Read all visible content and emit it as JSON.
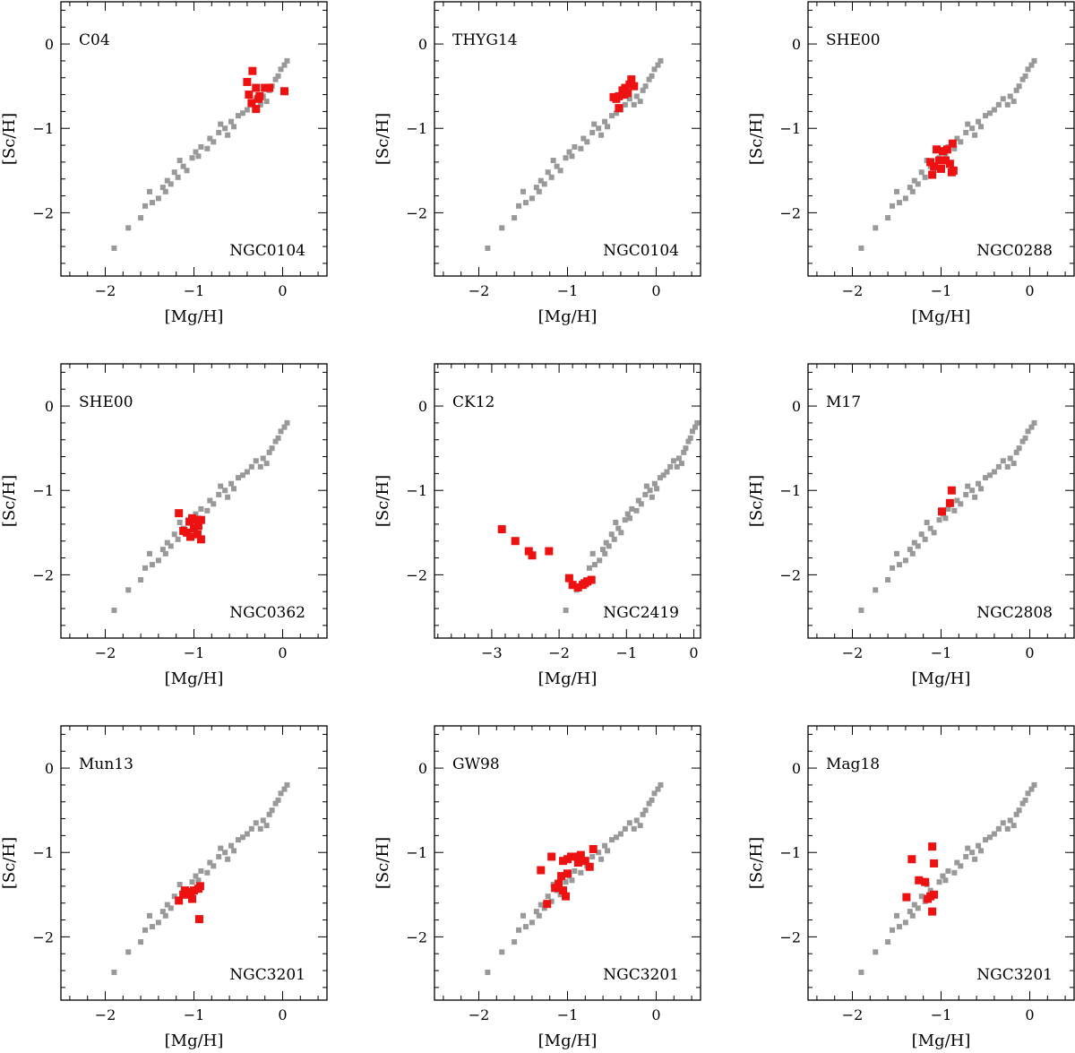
{
  "colors": {
    "reference": "#999999",
    "highlight": "#ee1111",
    "axis": "#000000"
  },
  "chart_data": [
    {
      "type": "scatter",
      "source_label": "C04",
      "cluster_label": "NGC0104",
      "xlabel": "[Mg/H]",
      "ylabel": "[Sc/H]",
      "xlim": [
        -2.5,
        0.5
      ],
      "ylim": [
        -2.75,
        0.5
      ],
      "xticks": [
        -2,
        -1,
        0
      ],
      "yticks": [
        -2,
        -1,
        0
      ],
      "x_tick_labels": [
        "−2",
        "−1",
        "0"
      ],
      "y_tick_labels": [
        "−2",
        "−1",
        "0"
      ],
      "series": [
        {
          "name": "NGC0104",
          "points": [
            [
              -0.38,
              -0.6
            ],
            [
              -0.34,
              -0.32
            ],
            [
              -0.3,
              -0.52
            ],
            [
              -0.35,
              -0.7
            ],
            [
              -0.27,
              -0.65
            ],
            [
              -0.3,
              -0.77
            ],
            [
              -0.2,
              -0.52
            ],
            [
              -0.15,
              -0.52
            ],
            [
              -0.26,
              -0.62
            ],
            [
              -0.4,
              -0.45
            ],
            [
              0.02,
              -0.56
            ]
          ]
        }
      ]
    },
    {
      "type": "scatter",
      "source_label": "THYG14",
      "cluster_label": "NGC0104",
      "xlabel": "[Mg/H]",
      "ylabel": "[Sc/H]",
      "xlim": [
        -2.5,
        0.5
      ],
      "ylim": [
        -2.75,
        0.5
      ],
      "xticks": [
        -2,
        -1,
        0
      ],
      "yticks": [
        -2,
        -1,
        0
      ],
      "x_tick_labels": [
        "−2",
        "−1",
        "0"
      ],
      "y_tick_labels": [
        "−2",
        "−1",
        "0"
      ],
      "series": [
        {
          "name": "NGC0104",
          "points": [
            [
              -0.48,
              -0.63
            ],
            [
              -0.42,
              -0.62
            ],
            [
              -0.38,
              -0.55
            ],
            [
              -0.35,
              -0.52
            ],
            [
              -0.3,
              -0.48
            ],
            [
              -0.28,
              -0.42
            ],
            [
              -0.36,
              -0.6
            ],
            [
              -0.42,
              -0.76
            ],
            [
              -0.32,
              -0.58
            ],
            [
              -0.25,
              -0.5
            ],
            [
              -0.45,
              -0.65
            ]
          ]
        }
      ]
    },
    {
      "type": "scatter",
      "source_label": "SHE00",
      "cluster_label": "NGC0288",
      "xlabel": "[Mg/H]",
      "ylabel": "[Sc/H]",
      "xlim": [
        -2.5,
        0.5
      ],
      "ylim": [
        -2.75,
        0.5
      ],
      "xticks": [
        -2,
        -1,
        0
      ],
      "yticks": [
        -2,
        -1,
        0
      ],
      "x_tick_labels": [
        "−2",
        "−1",
        "0"
      ],
      "y_tick_labels": [
        "−2",
        "−1",
        "0"
      ],
      "series": [
        {
          "name": "NGC0288",
          "points": [
            [
              -1.1,
              -1.55
            ],
            [
              -1.08,
              -1.45
            ],
            [
              -1.02,
              -1.38
            ],
            [
              -1.05,
              -1.25
            ],
            [
              -0.98,
              -1.27
            ],
            [
              -0.93,
              -1.25
            ],
            [
              -0.87,
              -1.18
            ],
            [
              -0.95,
              -1.38
            ],
            [
              -0.9,
              -1.42
            ],
            [
              -0.86,
              -1.5
            ],
            [
              -1.0,
              -1.48
            ],
            [
              -1.12,
              -1.4
            ],
            [
              -0.88,
              -1.52
            ]
          ]
        }
      ]
    },
    {
      "type": "scatter",
      "source_label": "SHE00",
      "cluster_label": "NGC0362",
      "xlabel": "[Mg/H]",
      "ylabel": "[Sc/H]",
      "xlim": [
        -2.5,
        0.5
      ],
      "ylim": [
        -2.75,
        0.5
      ],
      "xticks": [
        -2,
        -1,
        0
      ],
      "yticks": [
        -2,
        -1,
        0
      ],
      "x_tick_labels": [
        "−2",
        "−1",
        "0"
      ],
      "y_tick_labels": [
        "−2",
        "−1",
        "0"
      ],
      "series": [
        {
          "name": "NGC0362",
          "points": [
            [
              -1.17,
              -1.27
            ],
            [
              -1.12,
              -1.48
            ],
            [
              -1.05,
              -1.37
            ],
            [
              -1.02,
              -1.33
            ],
            [
              -0.97,
              -1.35
            ],
            [
              -0.92,
              -1.35
            ],
            [
              -1.0,
              -1.45
            ],
            [
              -0.96,
              -1.52
            ],
            [
              -1.04,
              -1.55
            ],
            [
              -0.92,
              -1.58
            ],
            [
              -0.95,
              -1.42
            ],
            [
              -1.08,
              -1.5
            ]
          ]
        }
      ]
    },
    {
      "type": "scatter",
      "source_label": "CK12",
      "cluster_label": "NGC2419",
      "xlabel": "[Mg/H]",
      "ylabel": "[Sc/H]",
      "xlim": [
        -3.85,
        0.1
      ],
      "ylim": [
        -2.75,
        0.5
      ],
      "xticks": [
        -3,
        -2,
        -1,
        0
      ],
      "yticks": [
        -2,
        -1,
        0
      ],
      "x_tick_labels": [
        "−3",
        "−2",
        "−1",
        "0"
      ],
      "y_tick_labels": [
        "−2",
        "−1",
        "0"
      ],
      "series": [
        {
          "name": "NGC2419",
          "points": [
            [
              -2.85,
              -1.46
            ],
            [
              -2.65,
              -1.6
            ],
            [
              -2.45,
              -1.72
            ],
            [
              -2.4,
              -1.77
            ],
            [
              -2.15,
              -1.72
            ],
            [
              -1.85,
              -2.04
            ],
            [
              -1.8,
              -2.12
            ],
            [
              -1.72,
              -2.15
            ],
            [
              -1.65,
              -2.12
            ],
            [
              -1.58,
              -2.08
            ],
            [
              -1.52,
              -2.06
            ],
            [
              -1.62,
              -2.1
            ]
          ]
        }
      ]
    },
    {
      "type": "scatter",
      "source_label": "M17",
      "cluster_label": "NGC2808",
      "xlabel": "[Mg/H]",
      "ylabel": "[Sc/H]",
      "xlim": [
        -2.5,
        0.5
      ],
      "ylim": [
        -2.75,
        0.5
      ],
      "xticks": [
        -2,
        -1,
        0
      ],
      "yticks": [
        -2,
        -1,
        0
      ],
      "x_tick_labels": [
        "−2",
        "−1",
        "0"
      ],
      "y_tick_labels": [
        "−2",
        "−1",
        "0"
      ],
      "series": [
        {
          "name": "NGC2808",
          "points": [
            [
              -0.88,
              -1.0
            ],
            [
              -0.9,
              -1.15
            ],
            [
              -0.99,
              -1.25
            ]
          ]
        }
      ]
    },
    {
      "type": "scatter",
      "source_label": "Mun13",
      "cluster_label": "NGC3201",
      "xlabel": "[Mg/H]",
      "ylabel": "[Sc/H]",
      "xlim": [
        -2.5,
        0.5
      ],
      "ylim": [
        -2.75,
        0.5
      ],
      "xticks": [
        -2,
        -1,
        0
      ],
      "yticks": [
        -2,
        -1,
        0
      ],
      "x_tick_labels": [
        "−2",
        "−1",
        "0"
      ],
      "y_tick_labels": [
        "−2",
        "−1",
        "0"
      ],
      "series": [
        {
          "name": "NGC3201",
          "points": [
            [
              -1.17,
              -1.57
            ],
            [
              -1.12,
              -1.5
            ],
            [
              -1.08,
              -1.47
            ],
            [
              -1.04,
              -1.5
            ],
            [
              -1.0,
              -1.45
            ],
            [
              -0.95,
              -1.43
            ],
            [
              -0.93,
              -1.4
            ],
            [
              -1.02,
              -1.55
            ],
            [
              -0.94,
              -1.79
            ],
            [
              -1.1,
              -1.45
            ]
          ]
        }
      ]
    },
    {
      "type": "scatter",
      "source_label": "GW98",
      "cluster_label": "NGC3201",
      "xlabel": "[Mg/H]",
      "ylabel": "[Sc/H]",
      "xlim": [
        -2.5,
        0.5
      ],
      "ylim": [
        -2.75,
        0.5
      ],
      "xticks": [
        -2,
        -1,
        0
      ],
      "yticks": [
        -2,
        -1,
        0
      ],
      "x_tick_labels": [
        "−2",
        "−1",
        "0"
      ],
      "y_tick_labels": [
        "−2",
        "−1",
        "0"
      ],
      "series": [
        {
          "name": "NGC3201",
          "points": [
            [
              -1.3,
              -1.21
            ],
            [
              -1.23,
              -1.61
            ],
            [
              -1.18,
              -1.05
            ],
            [
              -1.1,
              -1.37
            ],
            [
              -1.05,
              -1.45
            ],
            [
              -1.02,
              -1.52
            ],
            [
              -1.07,
              -1.28
            ],
            [
              -1.05,
              -1.1
            ],
            [
              -1.0,
              -1.08
            ],
            [
              -0.96,
              -1.05
            ],
            [
              -0.9,
              -1.05
            ],
            [
              -0.85,
              -1.03
            ],
            [
              -0.8,
              -1.1
            ],
            [
              -0.75,
              -1.17
            ],
            [
              -0.71,
              -0.96
            ],
            [
              -1.0,
              -1.25
            ],
            [
              -0.88,
              -1.12
            ],
            [
              -1.14,
              -1.42
            ]
          ]
        }
      ]
    },
    {
      "type": "scatter",
      "source_label": "Mag18",
      "cluster_label": "NGC3201",
      "xlabel": "[Mg/H]",
      "ylabel": "[Sc/H]",
      "xlim": [
        -2.5,
        0.5
      ],
      "ylim": [
        -2.75,
        0.5
      ],
      "xticks": [
        -2,
        -1,
        0
      ],
      "yticks": [
        -2,
        -1,
        0
      ],
      "x_tick_labels": [
        "−2",
        "−1",
        "0"
      ],
      "y_tick_labels": [
        "−2",
        "−1",
        "0"
      ],
      "series": [
        {
          "name": "NGC3201",
          "points": [
            [
              -1.39,
              -1.53
            ],
            [
              -1.33,
              -1.08
            ],
            [
              -1.25,
              -1.33
            ],
            [
              -1.18,
              -1.35
            ],
            [
              -1.1,
              -0.93
            ],
            [
              -1.08,
              -1.13
            ],
            [
              -1.12,
              -1.52
            ],
            [
              -1.08,
              -1.5
            ],
            [
              -1.1,
              -1.7
            ],
            [
              -1.15,
              -1.55
            ]
          ]
        }
      ]
    }
  ],
  "reference_sequence": [
    [
      -1.9,
      -2.42
    ],
    [
      -1.74,
      -2.18
    ],
    [
      -1.6,
      -2.06
    ],
    [
      -1.55,
      -1.92
    ],
    [
      -1.47,
      -1.88
    ],
    [
      -1.5,
      -1.75
    ],
    [
      -1.4,
      -1.83
    ],
    [
      -1.35,
      -1.7
    ],
    [
      -1.3,
      -1.62
    ],
    [
      -1.32,
      -1.75
    ],
    [
      -1.26,
      -1.66
    ],
    [
      -1.22,
      -1.52
    ],
    [
      -1.18,
      -1.58
    ],
    [
      -1.12,
      -1.45
    ],
    [
      -1.16,
      -1.38
    ],
    [
      -1.08,
      -1.5
    ],
    [
      -1.02,
      -1.35
    ],
    [
      -0.98,
      -1.28
    ],
    [
      -0.95,
      -1.33
    ],
    [
      -0.92,
      -1.22
    ],
    [
      -0.85,
      -1.24
    ],
    [
      -0.82,
      -1.12
    ],
    [
      -0.78,
      -1.16
    ],
    [
      -0.72,
      -1.05
    ],
    [
      -0.7,
      -0.95
    ],
    [
      -0.65,
      -1.0
    ],
    [
      -0.62,
      -1.08
    ],
    [
      -0.58,
      -0.92
    ],
    [
      -0.55,
      -0.98
    ],
    [
      -0.5,
      -0.85
    ],
    [
      -0.45,
      -0.82
    ],
    [
      -0.4,
      -0.78
    ],
    [
      -0.35,
      -0.72
    ],
    [
      -0.3,
      -0.65
    ],
    [
      -0.22,
      -0.62
    ],
    [
      -0.25,
      -0.72
    ],
    [
      -0.18,
      -0.68
    ],
    [
      -0.15,
      -0.55
    ],
    [
      -0.12,
      -0.5
    ],
    [
      -0.08,
      -0.42
    ],
    [
      -0.05,
      -0.38
    ],
    [
      -0.02,
      -0.3
    ],
    [
      0.02,
      -0.25
    ],
    [
      0.05,
      -0.2
    ]
  ]
}
